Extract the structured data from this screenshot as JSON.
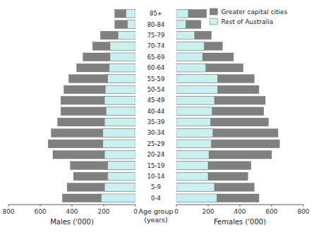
{
  "chart_data": [
    {
      "type": "bar",
      "orientation": "horizontal",
      "xlabel": "Males ('000)",
      "ylabel": "Age group\n(years)",
      "categories": [
        "0-4",
        "5-9",
        "10-14",
        "15-19",
        "20-24",
        "25-29",
        "30-34",
        "35-39",
        "40-44",
        "45-49",
        "50-54",
        "55-59",
        "60-64",
        "65-69",
        "70-74",
        "75-79",
        "80-84",
        "85+"
      ],
      "series": [
        {
          "color": "#808080",
          "values": [
            460,
            430,
            390,
            410,
            520,
            550,
            530,
            490,
            470,
            470,
            450,
            420,
            370,
            330,
            270,
            220,
            130,
            130
          ]
        },
        {
          "color": "#c8f0f0",
          "values": [
            215,
            195,
            175,
            175,
            195,
            205,
            205,
            195,
            185,
            195,
            190,
            175,
            165,
            160,
            160,
            110,
            50,
            60
          ]
        }
      ],
      "xlim": [
        800,
        0
      ],
      "xticks": [
        0,
        200,
        400,
        600,
        800
      ],
      "grid": false
    },
    {
      "type": "bar",
      "orientation": "horizontal",
      "xlabel": "Females ('000)",
      "categories": [
        "0-4",
        "5-9",
        "10-14",
        "15-19",
        "20-24",
        "25-29",
        "30-34",
        "35-39",
        "40-44",
        "45-49",
        "50-54",
        "55-59",
        "60-64",
        "65-69",
        "70-74",
        "75-79",
        "80-84",
        "85+"
      ],
      "series": [
        {
          "name": "Greater capital cities",
          "color": "#808080",
          "values": [
            520,
            490,
            450,
            470,
            600,
            650,
            640,
            580,
            550,
            560,
            520,
            490,
            420,
            360,
            290,
            220,
            155,
            190
          ]
        },
        {
          "name": "Rest of Australia",
          "color": "#c8f0f0",
          "values": [
            255,
            240,
            200,
            200,
            205,
            220,
            230,
            215,
            225,
            240,
            260,
            260,
            185,
            165,
            175,
            115,
            60,
            75
          ]
        }
      ],
      "xlim": [
        0,
        800
      ],
      "xticks": [
        0,
        200,
        400,
        600,
        800
      ],
      "grid": false,
      "legend": "upper right"
    }
  ]
}
